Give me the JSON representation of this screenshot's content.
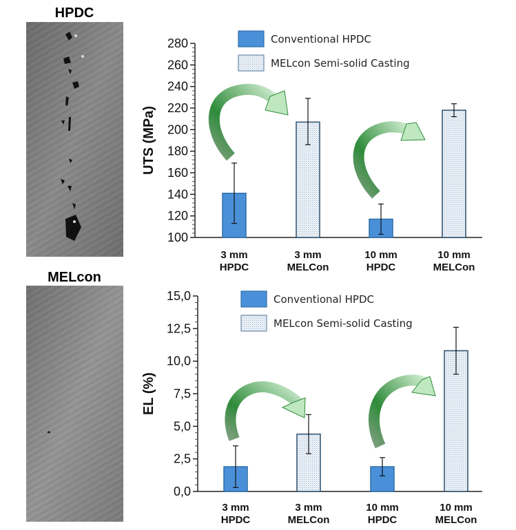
{
  "micrographs": [
    {
      "label": "HPDC"
    },
    {
      "label": "MELcon"
    }
  ],
  "colors": {
    "hpdc": "#4a90d9",
    "melcon": "#e6eef6",
    "arrow_dark": "#2e8b3a",
    "arrow_light": "#d8f2d8"
  },
  "chart_data": [
    {
      "type": "bar",
      "title": "",
      "ylabel": "UTS (MPa)",
      "xlabel": "",
      "ylim": [
        100,
        280
      ],
      "yticks": [
        "100",
        "120",
        "140",
        "160",
        "180",
        "200",
        "220",
        "240",
        "260",
        "280"
      ],
      "categories": [
        [
          "3 mm",
          "HPDC"
        ],
        [
          "3 mm",
          "MELCon"
        ],
        [
          "10 mm",
          "HPDC"
        ],
        [
          "10 mm",
          "MELCon"
        ]
      ],
      "legend": [
        "Conventional HPDC",
        "MELcon Semi-solid Casting"
      ],
      "legend_position": "top",
      "series_of_bar": [
        0,
        1,
        0,
        1
      ],
      "values": [
        141,
        207,
        117,
        218
      ],
      "error_low": [
        113,
        186,
        103,
        212
      ],
      "error_high": [
        169,
        229,
        131,
        224
      ]
    },
    {
      "type": "bar",
      "title": "",
      "ylabel": "EL (%)",
      "xlabel": "",
      "ylim": [
        0,
        15
      ],
      "yticks": [
        "0,0",
        "2,5",
        "5,0",
        "7,5",
        "10,0",
        "12,5",
        "15,0"
      ],
      "categories": [
        [
          "3 mm",
          "HPDC"
        ],
        [
          "3 mm",
          "MELCon"
        ],
        [
          "10 mm",
          "HPDC"
        ],
        [
          "10 mm",
          "MELCon"
        ]
      ],
      "legend": [
        "Conventional HPDC",
        "MELcon Semi-solid Casting"
      ],
      "legend_position": "top",
      "series_of_bar": [
        0,
        1,
        0,
        1
      ],
      "values": [
        1.9,
        4.4,
        1.9,
        10.8
      ],
      "error_low": [
        0.3,
        2.9,
        1.2,
        9.0
      ],
      "error_high": [
        3.5,
        5.9,
        2.6,
        12.6
      ]
    }
  ]
}
